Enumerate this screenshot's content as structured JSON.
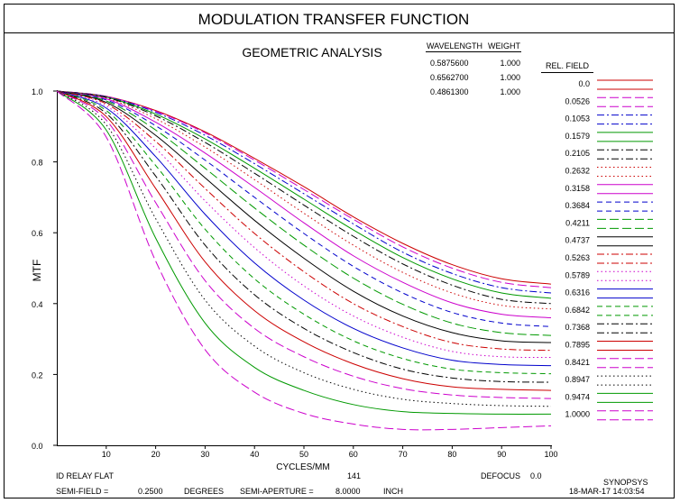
{
  "header": {
    "title": "MODULATION TRANSFER FUNCTION",
    "subtitle": "GEOMETRIC ANALYSIS"
  },
  "wavelength_table": {
    "headers": [
      "WAVELENGTH",
      "WEIGHT"
    ],
    "rows": [
      {
        "wavelength": "0.5875600",
        "weight": "1.000"
      },
      {
        "wavelength": "0.6562700",
        "weight": "1.000"
      },
      {
        "wavelength": "0.4861300",
        "weight": "1.000"
      }
    ]
  },
  "legend": {
    "title": "REL. FIELD",
    "fields": [
      "0.0",
      "0.0526",
      "0.1053",
      "0.1579",
      "0.2105",
      "0.2632",
      "0.3158",
      "0.3684",
      "0.4211",
      "0.4737",
      "0.5263",
      "0.5789",
      "0.6316",
      "0.6842",
      "0.7368",
      "0.7895",
      "0.8421",
      "0.8947",
      "0.9474",
      "1.0000"
    ],
    "colors": [
      "#cc0000",
      "#cc00cc",
      "#0000cc",
      "#009900",
      "#000000",
      "#cc0000",
      "#cc00cc",
      "#0000cc",
      "#009900",
      "#000000",
      "#cc0000",
      "#cc00cc",
      "#0000cc",
      "#009900",
      "#000000",
      "#cc0000",
      "#cc00cc",
      "#000000",
      "#009900",
      "#cc00cc"
    ],
    "styles": [
      "solid",
      "longdash",
      "dashdot",
      "solid",
      "dashdot",
      "dotted",
      "solid",
      "dash",
      "longdash",
      "solid",
      "dashdot",
      "dotted",
      "solid",
      "dash",
      "dashdot",
      "solid",
      "longdash",
      "dotted",
      "solid",
      "longdash"
    ]
  },
  "chart_data": {
    "type": "line",
    "xlabel": "CYCLES/MM",
    "ylabel": "MTF",
    "xlim": [
      0,
      100
    ],
    "ylim": [
      0,
      1
    ],
    "x_ticks": [
      "10",
      "20",
      "30",
      "40",
      "50",
      "60",
      "70",
      "80",
      "90",
      "100"
    ],
    "y_ticks": [
      "0.0",
      "0.2",
      "0.4",
      "0.6",
      "0.8",
      "1.0"
    ],
    "x": [
      0,
      10,
      20,
      30,
      40,
      50,
      60,
      70,
      80,
      90,
      100
    ],
    "series": [
      {
        "name": "0.0",
        "values": [
          1.0,
          0.985,
          0.945,
          0.885,
          0.81,
          0.73,
          0.645,
          0.57,
          0.51,
          0.47,
          0.455
        ]
      },
      {
        "name": "0.0526",
        "values": [
          1.0,
          0.985,
          0.943,
          0.882,
          0.805,
          0.722,
          0.638,
          0.56,
          0.5,
          0.46,
          0.445
        ]
      },
      {
        "name": "0.1053",
        "values": [
          1.0,
          0.984,
          0.94,
          0.875,
          0.795,
          0.71,
          0.625,
          0.545,
          0.485,
          0.445,
          0.43
        ]
      },
      {
        "name": "0.1579",
        "values": [
          1.0,
          0.983,
          0.935,
          0.865,
          0.782,
          0.695,
          0.608,
          0.53,
          0.47,
          0.43,
          0.415
        ]
      },
      {
        "name": "0.2105",
        "values": [
          1.0,
          0.982,
          0.93,
          0.855,
          0.768,
          0.678,
          0.59,
          0.512,
          0.452,
          0.412,
          0.4
        ]
      },
      {
        "name": "0.2632",
        "values": [
          1.0,
          0.98,
          0.922,
          0.842,
          0.75,
          0.655,
          0.565,
          0.488,
          0.43,
          0.395,
          0.385
        ]
      },
      {
        "name": "0.3158",
        "values": [
          1.0,
          0.978,
          0.912,
          0.825,
          0.728,
          0.628,
          0.535,
          0.46,
          0.402,
          0.37,
          0.36
        ]
      },
      {
        "name": "0.3684",
        "values": [
          1.0,
          0.975,
          0.902,
          0.805,
          0.7,
          0.598,
          0.505,
          0.43,
          0.375,
          0.345,
          0.335
        ]
      },
      {
        "name": "0.4211",
        "values": [
          1.0,
          0.972,
          0.89,
          0.782,
          0.67,
          0.565,
          0.472,
          0.398,
          0.345,
          0.318,
          0.31
        ]
      },
      {
        "name": "0.4737",
        "values": [
          1.0,
          0.968,
          0.875,
          0.755,
          0.635,
          0.528,
          0.435,
          0.365,
          0.318,
          0.295,
          0.29
        ]
      },
      {
        "name": "0.5263",
        "values": [
          1.0,
          0.964,
          0.858,
          0.725,
          0.598,
          0.49,
          0.4,
          0.335,
          0.29,
          0.272,
          0.268
        ]
      },
      {
        "name": "0.5789",
        "values": [
          1.0,
          0.958,
          0.838,
          0.69,
          0.558,
          0.45,
          0.365,
          0.305,
          0.265,
          0.25,
          0.248
        ]
      },
      {
        "name": "0.6316",
        "values": [
          1.0,
          0.952,
          0.815,
          0.652,
          0.515,
          0.41,
          0.33,
          0.275,
          0.24,
          0.228,
          0.225
        ]
      },
      {
        "name": "0.6842",
        "values": [
          1.0,
          0.945,
          0.79,
          0.61,
          0.47,
          0.37,
          0.295,
          0.245,
          0.215,
          0.205,
          0.202
        ]
      },
      {
        "name": "0.7368",
        "values": [
          1.0,
          0.937,
          0.76,
          0.565,
          0.425,
          0.33,
          0.262,
          0.215,
          0.19,
          0.18,
          0.178
        ]
      },
      {
        "name": "0.7895",
        "values": [
          1.0,
          0.928,
          0.725,
          0.518,
          0.38,
          0.292,
          0.23,
          0.188,
          0.165,
          0.158,
          0.155
        ]
      },
      {
        "name": "0.8421",
        "values": [
          1.0,
          0.918,
          0.685,
          0.465,
          0.33,
          0.25,
          0.195,
          0.16,
          0.142,
          0.135,
          0.132
        ]
      },
      {
        "name": "0.8947",
        "values": [
          1.0,
          0.905,
          0.64,
          0.41,
          0.28,
          0.205,
          0.158,
          0.13,
          0.118,
          0.112,
          0.11
        ]
      },
      {
        "name": "0.9474",
        "values": [
          1.0,
          0.89,
          0.585,
          0.345,
          0.22,
          0.155,
          0.115,
          0.095,
          0.09,
          0.088,
          0.088
        ]
      },
      {
        "name": "1.0000",
        "values": [
          1.0,
          0.87,
          0.52,
          0.27,
          0.15,
          0.09,
          0.06,
          0.045,
          0.045,
          0.05,
          0.055
        ]
      }
    ]
  },
  "footer": {
    "lens_name": "ID RELAY FLAT",
    "frequency_value": "141",
    "defocus_label": "DEFOCUS",
    "defocus_value": "0.0",
    "program": "SYNOPSYS",
    "semi_field_label": "SEMI-FIELD =",
    "semi_field_value": "0.2500",
    "semi_field_unit": "DEGREES",
    "semi_aperture_label": "SEMI-APERTURE =",
    "semi_aperture_value": "8.0000",
    "semi_aperture_unit": "INCH",
    "date_time": "18-MAR-17  14:03:54"
  }
}
